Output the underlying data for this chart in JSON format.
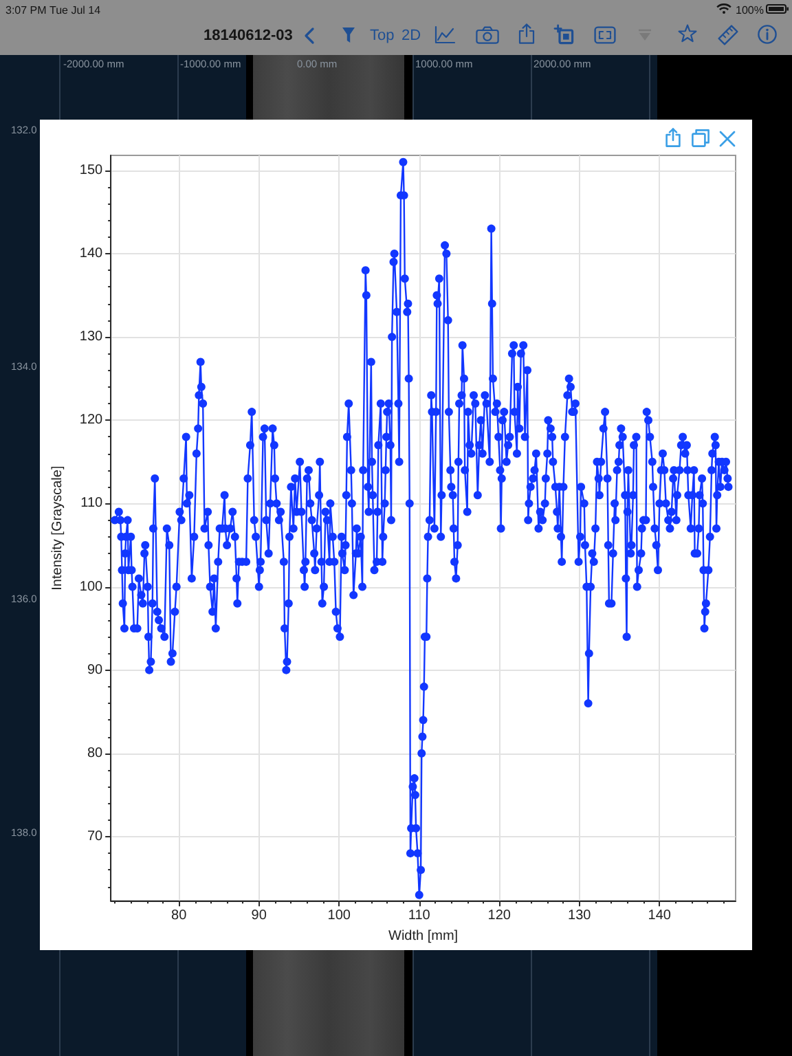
{
  "chart_data": {
    "type": "line",
    "xlabel": "Width [mm]",
    "ylabel": "Intensity [Grayscale]",
    "annotations": [
      "3:07 PM",
      "Tue Jul 14",
      "100%",
      "18140612-03",
      "Top",
      "2D",
      "-2000.00 mm",
      "-1000.00 mm",
      "0.00 mm",
      "1000.00 mm",
      "2000.00 mm",
      "132.0",
      "134.0",
      "136.0",
      "138.0"
    ],
    "x": [
      72.0,
      72.5,
      72.7,
      72.8,
      72.9,
      73.0,
      73.2,
      73.3,
      73.4,
      73.6,
      73.7,
      74.0,
      74.1,
      74.2,
      74.4,
      74.8,
      75.0,
      75.3,
      75.5,
      75.7,
      75.8,
      76.1,
      76.2,
      76.3,
      76.5,
      76.7,
      76.8,
      77.0,
      77.3,
      77.5,
      77.8,
      78.2,
      78.5,
      78.8,
      79.0,
      79.2,
      79.5,
      79.7,
      80.1,
      80.3,
      80.6,
      80.9,
      81.0,
      81.3,
      81.6,
      81.9,
      82.2,
      82.4,
      82.5,
      82.7,
      82.8,
      83.0,
      83.2,
      83.6,
      83.7,
      83.9,
      84.2,
      84.4,
      84.6,
      84.9,
      85.1,
      85.4,
      85.7,
      85.8,
      86.0,
      86.4,
      86.7,
      87.0,
      87.2,
      87.3,
      87.5,
      87.9,
      88.4,
      88.6,
      88.9,
      89.1,
      89.4,
      89.6,
      90.0,
      90.1,
      90.2,
      90.5,
      90.7,
      90.9,
      91.2,
      91.4,
      91.7,
      91.9,
      92.0,
      92.2,
      92.5,
      92.7,
      93.1,
      93.2,
      93.4,
      93.5,
      93.7,
      93.8,
      94.0,
      94.3,
      94.5,
      94.7,
      95.1,
      95.3,
      95.6,
      95.7,
      95.8,
      96.0,
      96.2,
      96.4,
      96.6,
      96.9,
      97.0,
      97.2,
      97.5,
      97.6,
      97.8,
      97.9,
      98.1,
      98.3,
      98.5,
      98.8,
      98.9,
      99.2,
      99.4,
      99.6,
      99.8,
      100.1,
      100.3,
      100.4,
      100.7,
      100.8,
      100.9,
      101.0,
      101.2,
      101.5,
      101.6,
      101.8,
      102.1,
      102.2,
      102.4,
      102.7,
      102.9,
      103.0,
      103.3,
      103.4,
      103.6,
      103.7,
      104.0,
      104.1,
      104.2,
      104.4,
      104.7,
      104.8,
      104.9,
      105.2,
      105.4,
      105.5,
      105.7,
      105.8,
      105.9,
      106.0,
      106.2,
      106.4,
      106.5,
      106.6,
      106.8,
      106.9,
      107.2,
      107.4,
      107.5,
      107.7,
      108.0,
      108.1,
      108.2,
      108.5,
      108.6,
      108.7,
      108.8,
      108.9,
      109.0,
      109.2,
      109.4,
      109.5,
      109.6,
      109.8,
      110.0,
      110.2,
      110.3,
      110.4,
      110.5,
      110.6,
      110.7,
      110.9,
      111.0,
      111.1,
      111.3,
      111.5,
      111.6,
      111.9,
      112.1,
      112.2,
      112.3,
      112.5,
      112.7,
      112.8,
      113.2,
      113.4,
      113.6,
      113.7,
      113.9,
      114.0,
      114.2,
      114.3,
      114.4,
      114.6,
      114.8,
      114.9,
      115.0,
      115.3,
      115.4,
      115.6,
      115.7,
      116.0,
      116.1,
      116.3,
      116.5,
      116.8,
      117.0,
      117.3,
      117.5,
      117.7,
      117.9,
      118.2,
      118.4,
      118.8,
      119.0,
      119.1,
      119.2,
      119.5,
      119.7,
      119.9,
      120.1,
      120.2,
      120.3,
      120.4,
      120.6,
      120.9,
      121.1,
      121.3,
      121.6,
      121.8,
      121.9,
      122.2,
      122.3,
      122.5,
      122.7,
      123.0,
      123.2,
      123.5,
      123.6,
      123.7,
      123.9,
      124.2,
      124.4,
      124.6,
      124.9,
      125.1,
      125.4,
      125.7,
      125.8,
      126.0,
      126.1,
      126.4,
      126.6,
      126.7,
      127.0,
      127.2,
      127.3,
      127.5,
      127.7,
      127.8,
      128.0,
      128.2,
      128.5,
      128.7,
      128.9,
      129.1,
      129.3,
      129.5,
      129.9,
      130.1,
      130.2,
      130.6,
      130.7,
      130.9,
      131.1,
      131.2,
      131.4,
      131.6,
      131.8,
      132.0,
      132.2,
      132.4,
      132.5,
      132.7,
      133.0,
      133.2,
      133.5,
      133.6,
      133.7,
      134.0,
      134.2,
      134.4,
      134.5,
      134.7,
      134.9,
      135.0,
      135.2,
      135.4,
      135.7,
      135.8,
      135.9,
      136.0,
      136.1,
      136.4,
      136.5,
      136.7,
      136.8,
      137.1,
      137.2,
      137.4,
      137.7,
      137.8,
      138.0,
      138.3,
      138.4,
      138.6,
      138.8,
      139.1,
      139.2,
      139.4,
      139.6,
      139.8,
      140.0,
      140.2,
      140.4,
      140.6,
      140.8,
      141.1,
      141.3,
      141.5,
      141.7,
      141.8,
      142.1,
      142.2,
      142.5,
      142.7,
      142.9,
      143.2,
      143.4,
      143.5,
      143.6,
      143.9,
      144.1,
      144.3,
      144.4,
      144.7,
      144.9,
      145.0,
      145.3,
      145.4,
      145.5,
      145.6,
      145.7,
      145.8,
      146.1,
      146.3,
      146.5,
      146.6,
      146.9,
      147.0,
      147.1,
      147.2,
      147.4,
      147.6,
      147.8,
      148.1,
      148.3,
      148.5,
      148.6
    ],
    "values": [
      108,
      109,
      108,
      106,
      102,
      98,
      95,
      104,
      106,
      108,
      102,
      106,
      102,
      100,
      95,
      95,
      101,
      99,
      98,
      104,
      105,
      100,
      94,
      90,
      91,
      98,
      107,
      113,
      97,
      96,
      95,
      94,
      107,
      105,
      91,
      92,
      97,
      100,
      109,
      108,
      113,
      118,
      110,
      111,
      101,
      106,
      116,
      119,
      123,
      127,
      124,
      122,
      107,
      109,
      105,
      100,
      97,
      101,
      95,
      103,
      107,
      107,
      111,
      107,
      105,
      107,
      109,
      106,
      101,
      98,
      103,
      103,
      103,
      113,
      117,
      121,
      108,
      106,
      100,
      102,
      103,
      118,
      119,
      108,
      104,
      110,
      119,
      117,
      113,
      110,
      108,
      109,
      103,
      95,
      90,
      91,
      98,
      106,
      112,
      107,
      113,
      109,
      115,
      109,
      102,
      100,
      103,
      113,
      114,
      110,
      108,
      104,
      102,
      107,
      111,
      115,
      103,
      98,
      100,
      109,
      108,
      103,
      110,
      106,
      103,
      97,
      95,
      94,
      106,
      104,
      102,
      105,
      111,
      118,
      122,
      114,
      110,
      99,
      104,
      107,
      104,
      106,
      100,
      114,
      138,
      135,
      112,
      109,
      127,
      115,
      111,
      102,
      103,
      109,
      117,
      122,
      103,
      106,
      110,
      114,
      118,
      121,
      122,
      117,
      108,
      130,
      139,
      140,
      133,
      122,
      115,
      147,
      151,
      147,
      137,
      133,
      134,
      125,
      110,
      68,
      71,
      76,
      77,
      75,
      71,
      68,
      63,
      66,
      80,
      82,
      84,
      88,
      94,
      94,
      101,
      106,
      108,
      123,
      121,
      107,
      121,
      135,
      134,
      137,
      106,
      111,
      141,
      140,
      132,
      121,
      114,
      112,
      111,
      107,
      103,
      101,
      105,
      115,
      122,
      123,
      129,
      125,
      114,
      109,
      121,
      117,
      116,
      123,
      122,
      111,
      117,
      120,
      116,
      123,
      122,
      115,
      143,
      134,
      125,
      121,
      122,
      118,
      114,
      107,
      113,
      120,
      121,
      115,
      117,
      118,
      128,
      129,
      121,
      116,
      124,
      119,
      128,
      129,
      118,
      126,
      108,
      110,
      112,
      113,
      114,
      116,
      107,
      109,
      108,
      110,
      113,
      116,
      120,
      119,
      118,
      115,
      112,
      109,
      107,
      112,
      106,
      103,
      112,
      118,
      123,
      125,
      124,
      121,
      121,
      122,
      103,
      106,
      112,
      110,
      105,
      100,
      86,
      92,
      100,
      104,
      103,
      107,
      115,
      113,
      111,
      115,
      119,
      121,
      113,
      105,
      98,
      98,
      104,
      110,
      108,
      114,
      115,
      117,
      119,
      118,
      111,
      101,
      94,
      109,
      114,
      104,
      105,
      111,
      117,
      118,
      100,
      102,
      104,
      107,
      108,
      108,
      121,
      120,
      118,
      115,
      112,
      107,
      105,
      102,
      110,
      114,
      116,
      114,
      110,
      108,
      107,
      109,
      113,
      114,
      108,
      111,
      114,
      117,
      118,
      116,
      117,
      114,
      111,
      107,
      111,
      114,
      104,
      104,
      107,
      111,
      113,
      110,
      102,
      95,
      97,
      98,
      102,
      106,
      114,
      116,
      118,
      117,
      107,
      111,
      115,
      112,
      115,
      114,
      115,
      113,
      112
    ],
    "color": "#1237ff",
    "marker": "circle",
    "line_style": "solid",
    "grid": true,
    "xlim": [
      71.5,
      149.5
    ],
    "xticks": [
      {
        "value": 72,
        "label": null
      },
      {
        "value": 74,
        "label": null
      },
      {
        "value": 76,
        "label": null
      },
      {
        "value": 78,
        "label": null
      },
      80,
      {
        "value": 82,
        "label": null
      },
      {
        "value": 84,
        "label": null
      },
      {
        "value": 86,
        "label": null
      },
      {
        "value": 88,
        "label": null
      },
      90,
      {
        "value": 92,
        "label": null
      },
      {
        "value": 94,
        "label": null
      },
      {
        "value": 96,
        "label": null
      },
      {
        "value": 98,
        "label": null
      },
      100,
      {
        "value": 102,
        "label": null
      },
      {
        "value": 104,
        "label": null
      },
      {
        "value": 106,
        "label": null
      },
      {
        "value": 108,
        "label": null
      },
      110,
      {
        "value": 112,
        "label": null
      },
      {
        "value": 114,
        "label": null
      },
      {
        "value": 116,
        "label": null
      },
      {
        "value": 118,
        "label": null
      },
      120,
      {
        "value": 122,
        "label": null
      },
      {
        "value": 124,
        "label": null
      },
      {
        "value": 126,
        "label": null
      },
      {
        "value": 128,
        "label": null
      },
      130,
      {
        "value": 132,
        "label": null
      },
      {
        "value": 134,
        "label": null
      },
      {
        "value": 136,
        "label": null
      },
      {
        "value": 138,
        "label": null
      },
      140,
      {
        "value": 142,
        "label": null
      },
      {
        "value": 144,
        "label": null
      },
      {
        "value": 146,
        "label": null
      },
      {
        "value": 148,
        "label": null
      }
    ],
    "ylim": [
      62.3,
      151.8
    ],
    "yticks": [
      {
        "value": 64,
        "label": null
      },
      {
        "value": 66,
        "label": null
      },
      {
        "value": 68,
        "label": null
      },
      70,
      {
        "value": 72,
        "label": null
      },
      {
        "value": 74,
        "label": null
      },
      {
        "value": 76,
        "label": null
      },
      {
        "value": 78,
        "label": null
      },
      80,
      {
        "value": 82,
        "label": null
      },
      {
        "value": 84,
        "label": null
      },
      {
        "value": 86,
        "label": null
      },
      {
        "value": 88,
        "label": null
      },
      90,
      {
        "value": 92,
        "label": null
      },
      {
        "value": 94,
        "label": null
      },
      {
        "value": 96,
        "label": null
      },
      {
        "value": 98,
        "label": null
      },
      100,
      {
        "value": 102,
        "label": null
      },
      {
        "value": 104,
        "label": null
      },
      {
        "value": 106,
        "label": null
      },
      {
        "value": 108,
        "label": null
      },
      110,
      {
        "value": 112,
        "label": null
      },
      {
        "value": 114,
        "label": null
      },
      {
        "value": 116,
        "label": null
      },
      {
        "value": 118,
        "label": null
      },
      120,
      {
        "value": 122,
        "label": null
      },
      {
        "value": 124,
        "label": null
      },
      {
        "value": 126,
        "label": null
      },
      {
        "value": 128,
        "label": null
      },
      130,
      {
        "value": 132,
        "label": null
      },
      {
        "value": 134,
        "label": null
      },
      {
        "value": 136,
        "label": null
      },
      {
        "value": 138,
        "label": null
      },
      140,
      {
        "value": 142,
        "label": null
      },
      {
        "value": 144,
        "label": null
      },
      {
        "value": 146,
        "label": null
      },
      {
        "value": 148,
        "label": null
      },
      150
    ]
  }
}
